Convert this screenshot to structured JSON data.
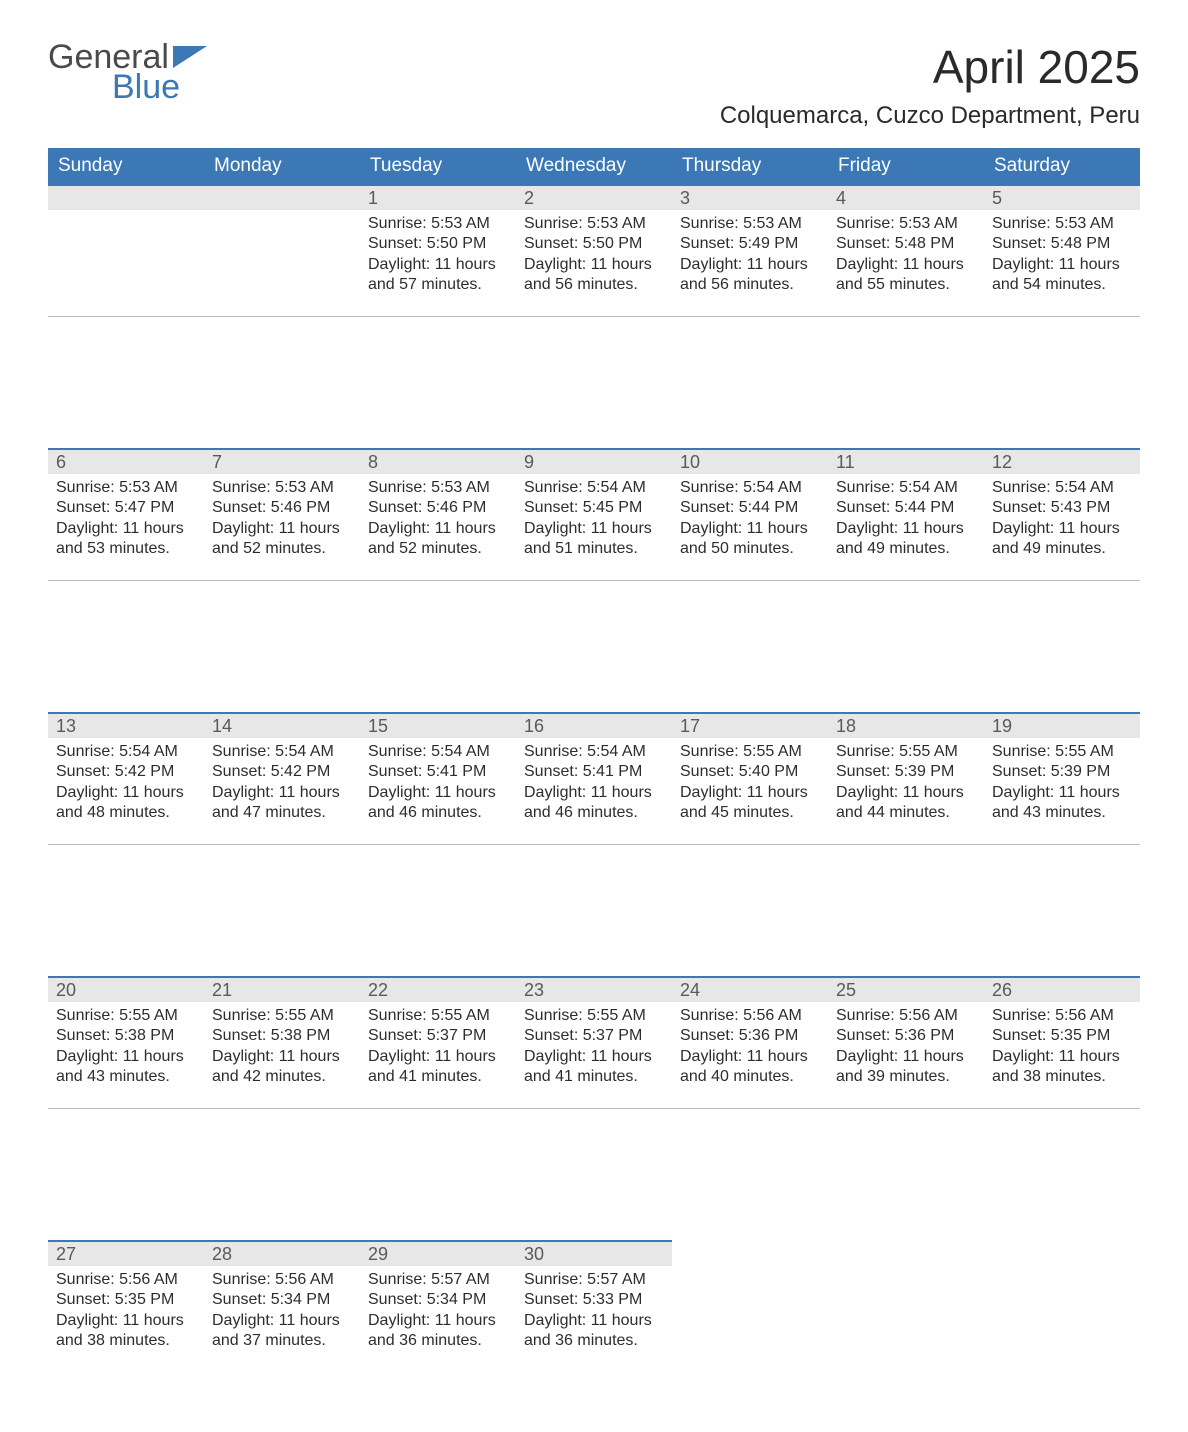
{
  "logo": {
    "word1": "General",
    "word2": "Blue"
  },
  "title": "April 2025",
  "location": "Colquemarca, Cuzco Department, Peru",
  "colors": {
    "header_bg": "#3b78b5",
    "header_text": "#ffffff",
    "daybar_bg": "#e7e7e7",
    "daybar_border": "#3b78b5",
    "row_sep": "#bcbcbc",
    "logo_accent": "#3b78b5",
    "text": "#2d2d2d"
  },
  "weekdays": [
    "Sunday",
    "Monday",
    "Tuesday",
    "Wednesday",
    "Thursday",
    "Friday",
    "Saturday"
  ],
  "weeks": [
    [
      null,
      null,
      {
        "n": "1",
        "sr": "5:53 AM",
        "ss": "5:50 PM",
        "dl": "11 hours and 57 minutes."
      },
      {
        "n": "2",
        "sr": "5:53 AM",
        "ss": "5:50 PM",
        "dl": "11 hours and 56 minutes."
      },
      {
        "n": "3",
        "sr": "5:53 AM",
        "ss": "5:49 PM",
        "dl": "11 hours and 56 minutes."
      },
      {
        "n": "4",
        "sr": "5:53 AM",
        "ss": "5:48 PM",
        "dl": "11 hours and 55 minutes."
      },
      {
        "n": "5",
        "sr": "5:53 AM",
        "ss": "5:48 PM",
        "dl": "11 hours and 54 minutes."
      }
    ],
    [
      {
        "n": "6",
        "sr": "5:53 AM",
        "ss": "5:47 PM",
        "dl": "11 hours and 53 minutes."
      },
      {
        "n": "7",
        "sr": "5:53 AM",
        "ss": "5:46 PM",
        "dl": "11 hours and 52 minutes."
      },
      {
        "n": "8",
        "sr": "5:53 AM",
        "ss": "5:46 PM",
        "dl": "11 hours and 52 minutes."
      },
      {
        "n": "9",
        "sr": "5:54 AM",
        "ss": "5:45 PM",
        "dl": "11 hours and 51 minutes."
      },
      {
        "n": "10",
        "sr": "5:54 AM",
        "ss": "5:44 PM",
        "dl": "11 hours and 50 minutes."
      },
      {
        "n": "11",
        "sr": "5:54 AM",
        "ss": "5:44 PM",
        "dl": "11 hours and 49 minutes."
      },
      {
        "n": "12",
        "sr": "5:54 AM",
        "ss": "5:43 PM",
        "dl": "11 hours and 49 minutes."
      }
    ],
    [
      {
        "n": "13",
        "sr": "5:54 AM",
        "ss": "5:42 PM",
        "dl": "11 hours and 48 minutes."
      },
      {
        "n": "14",
        "sr": "5:54 AM",
        "ss": "5:42 PM",
        "dl": "11 hours and 47 minutes."
      },
      {
        "n": "15",
        "sr": "5:54 AM",
        "ss": "5:41 PM",
        "dl": "11 hours and 46 minutes."
      },
      {
        "n": "16",
        "sr": "5:54 AM",
        "ss": "5:41 PM",
        "dl": "11 hours and 46 minutes."
      },
      {
        "n": "17",
        "sr": "5:55 AM",
        "ss": "5:40 PM",
        "dl": "11 hours and 45 minutes."
      },
      {
        "n": "18",
        "sr": "5:55 AM",
        "ss": "5:39 PM",
        "dl": "11 hours and 44 minutes."
      },
      {
        "n": "19",
        "sr": "5:55 AM",
        "ss": "5:39 PM",
        "dl": "11 hours and 43 minutes."
      }
    ],
    [
      {
        "n": "20",
        "sr": "5:55 AM",
        "ss": "5:38 PM",
        "dl": "11 hours and 43 minutes."
      },
      {
        "n": "21",
        "sr": "5:55 AM",
        "ss": "5:38 PM",
        "dl": "11 hours and 42 minutes."
      },
      {
        "n": "22",
        "sr": "5:55 AM",
        "ss": "5:37 PM",
        "dl": "11 hours and 41 minutes."
      },
      {
        "n": "23",
        "sr": "5:55 AM",
        "ss": "5:37 PM",
        "dl": "11 hours and 41 minutes."
      },
      {
        "n": "24",
        "sr": "5:56 AM",
        "ss": "5:36 PM",
        "dl": "11 hours and 40 minutes."
      },
      {
        "n": "25",
        "sr": "5:56 AM",
        "ss": "5:36 PM",
        "dl": "11 hours and 39 minutes."
      },
      {
        "n": "26",
        "sr": "5:56 AM",
        "ss": "5:35 PM",
        "dl": "11 hours and 38 minutes."
      }
    ],
    [
      {
        "n": "27",
        "sr": "5:56 AM",
        "ss": "5:35 PM",
        "dl": "11 hours and 38 minutes."
      },
      {
        "n": "28",
        "sr": "5:56 AM",
        "ss": "5:34 PM",
        "dl": "11 hours and 37 minutes."
      },
      {
        "n": "29",
        "sr": "5:57 AM",
        "ss": "5:34 PM",
        "dl": "11 hours and 36 minutes."
      },
      {
        "n": "30",
        "sr": "5:57 AM",
        "ss": "5:33 PM",
        "dl": "11 hours and 36 minutes."
      },
      null,
      null,
      null
    ]
  ],
  "labels": {
    "sunrise": "Sunrise:",
    "sunset": "Sunset:",
    "daylight": "Daylight:"
  }
}
